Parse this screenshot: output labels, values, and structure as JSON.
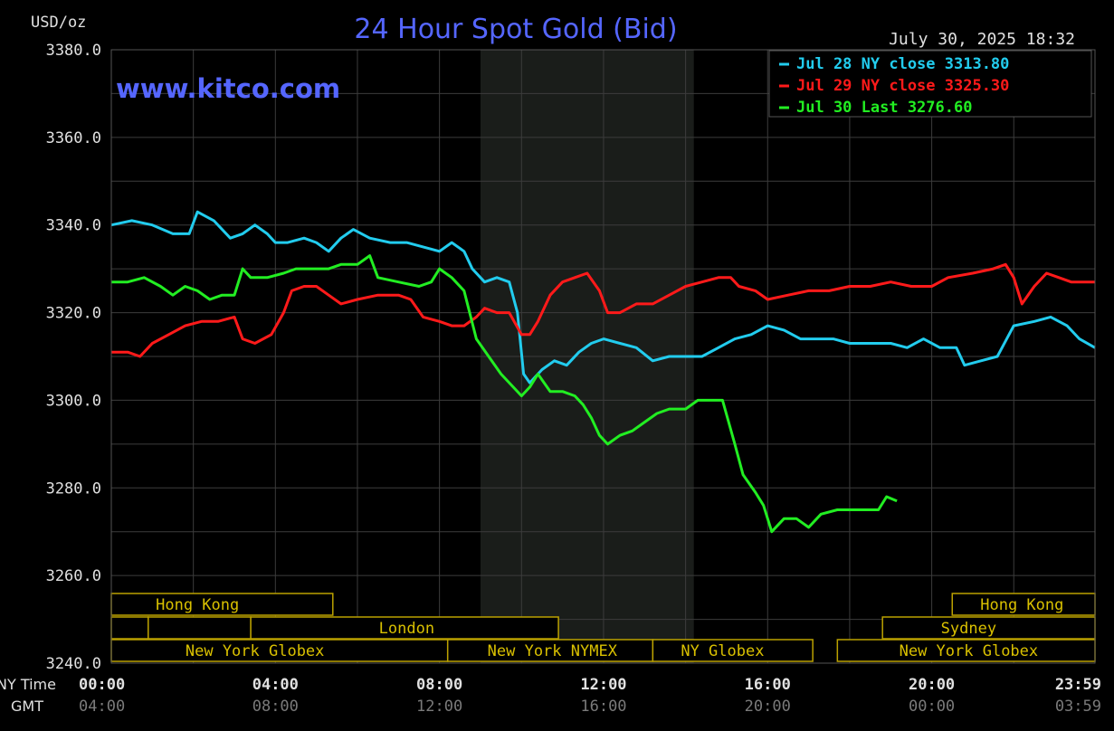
{
  "chart_data": {
    "type": "line",
    "title": "24 Hour Spot Gold (Bid)",
    "watermark": "www.kitco.com",
    "timestamp": "July 30, 2025 18:32",
    "ylabel": "USD/oz",
    "ylim": [
      3240,
      3380
    ],
    "y_ticks": [
      "3380.0",
      "3360.0",
      "3340.0",
      "3320.0",
      "3300.0",
      "3280.0",
      "3260.0",
      "3240.0"
    ],
    "x_ticks_ny": [
      "00:00",
      "04:00",
      "08:00",
      "12:00",
      "16:00",
      "20:00",
      "23:59"
    ],
    "x_ticks_gmt": [
      "04:00",
      "08:00",
      "12:00",
      "16:00",
      "20:00",
      "00:00",
      "03:59"
    ],
    "row_label_ny": "NY Time",
    "row_label_gmt": "GMT",
    "grid": true,
    "legend_position": "top-right",
    "shaded_period": [
      9,
      14.2
    ],
    "series": [
      {
        "name": "Jul 28 NY close 3313.80",
        "color": "#22ccee",
        "points": [
          [
            0,
            3340
          ],
          [
            0.5,
            3341
          ],
          [
            1,
            3340
          ],
          [
            1.5,
            3338
          ],
          [
            1.9,
            3338
          ],
          [
            2.1,
            3343
          ],
          [
            2.5,
            3341
          ],
          [
            2.9,
            3337
          ],
          [
            3.2,
            3338
          ],
          [
            3.5,
            3340
          ],
          [
            3.8,
            3338
          ],
          [
            4,
            3336
          ],
          [
            4.3,
            3336
          ],
          [
            4.7,
            3337
          ],
          [
            5,
            3336
          ],
          [
            5.3,
            3334
          ],
          [
            5.6,
            3337
          ],
          [
            5.9,
            3339
          ],
          [
            6.3,
            3337
          ],
          [
            6.8,
            3336
          ],
          [
            7.2,
            3336
          ],
          [
            7.6,
            3335
          ],
          [
            8,
            3334
          ],
          [
            8.3,
            3336
          ],
          [
            8.6,
            3334
          ],
          [
            8.8,
            3330
          ],
          [
            9.1,
            3327
          ],
          [
            9.4,
            3328
          ],
          [
            9.7,
            3327
          ],
          [
            9.9,
            3320
          ],
          [
            10.05,
            3306
          ],
          [
            10.2,
            3304
          ],
          [
            10.5,
            3307
          ],
          [
            10.8,
            3309
          ],
          [
            11.1,
            3308
          ],
          [
            11.4,
            3311
          ],
          [
            11.7,
            3313
          ],
          [
            12,
            3314
          ],
          [
            12.4,
            3313
          ],
          [
            12.8,
            3312
          ],
          [
            13.2,
            3309
          ],
          [
            13.6,
            3310
          ],
          [
            14,
            3310
          ],
          [
            14.4,
            3310
          ],
          [
            14.8,
            3312
          ],
          [
            15.2,
            3314
          ],
          [
            15.6,
            3315
          ],
          [
            16,
            3317
          ],
          [
            16.4,
            3316
          ],
          [
            16.8,
            3314
          ],
          [
            17.2,
            3314
          ],
          [
            17.6,
            3314
          ],
          [
            18,
            3313
          ],
          [
            18.5,
            3313
          ],
          [
            19,
            3313
          ],
          [
            19.4,
            3312
          ],
          [
            19.8,
            3314
          ],
          [
            20.2,
            3312
          ],
          [
            20.6,
            3312
          ],
          [
            20.8,
            3308
          ],
          [
            21.2,
            3309
          ],
          [
            21.6,
            3310
          ],
          [
            22,
            3317
          ],
          [
            22.5,
            3318
          ],
          [
            22.9,
            3319
          ],
          [
            23.3,
            3317
          ],
          [
            23.6,
            3314
          ],
          [
            23.98,
            3312
          ]
        ]
      },
      {
        "name": "Jul 29 NY close 3325.30",
        "color": "#ff1a1a",
        "points": [
          [
            0,
            3311
          ],
          [
            0.4,
            3311
          ],
          [
            0.7,
            3310
          ],
          [
            1,
            3313
          ],
          [
            1.4,
            3315
          ],
          [
            1.8,
            3317
          ],
          [
            2.2,
            3318
          ],
          [
            2.6,
            3318
          ],
          [
            3,
            3319
          ],
          [
            3.2,
            3314
          ],
          [
            3.5,
            3313
          ],
          [
            3.9,
            3315
          ],
          [
            4.2,
            3320
          ],
          [
            4.4,
            3325
          ],
          [
            4.7,
            3326
          ],
          [
            5,
            3326
          ],
          [
            5.3,
            3324
          ],
          [
            5.6,
            3322
          ],
          [
            6,
            3323
          ],
          [
            6.5,
            3324
          ],
          [
            7,
            3324
          ],
          [
            7.3,
            3323
          ],
          [
            7.6,
            3319
          ],
          [
            8,
            3318
          ],
          [
            8.3,
            3317
          ],
          [
            8.6,
            3317
          ],
          [
            8.9,
            3319
          ],
          [
            9.1,
            3321
          ],
          [
            9.4,
            3320
          ],
          [
            9.7,
            3320
          ],
          [
            10,
            3315
          ],
          [
            10.2,
            3315
          ],
          [
            10.4,
            3318
          ],
          [
            10.7,
            3324
          ],
          [
            11,
            3327
          ],
          [
            11.3,
            3328
          ],
          [
            11.6,
            3329
          ],
          [
            11.9,
            3325
          ],
          [
            12.1,
            3320
          ],
          [
            12.4,
            3320
          ],
          [
            12.8,
            3322
          ],
          [
            13.2,
            3322
          ],
          [
            13.6,
            3324
          ],
          [
            14,
            3326
          ],
          [
            14.4,
            3327
          ],
          [
            14.8,
            3328
          ],
          [
            15.1,
            3328
          ],
          [
            15.3,
            3326
          ],
          [
            15.7,
            3325
          ],
          [
            16,
            3323
          ],
          [
            16.5,
            3324
          ],
          [
            17,
            3325
          ],
          [
            17.5,
            3325
          ],
          [
            18,
            3326
          ],
          [
            18.5,
            3326
          ],
          [
            19,
            3327
          ],
          [
            19.5,
            3326
          ],
          [
            20,
            3326
          ],
          [
            20.4,
            3328
          ],
          [
            21,
            3329
          ],
          [
            21.5,
            3330
          ],
          [
            21.8,
            3331
          ],
          [
            22,
            3328
          ],
          [
            22.2,
            3322
          ],
          [
            22.5,
            3326
          ],
          [
            22.8,
            3329
          ],
          [
            23.1,
            3328
          ],
          [
            23.4,
            3327
          ],
          [
            23.7,
            3327
          ],
          [
            23.98,
            3327
          ]
        ]
      },
      {
        "name": "Jul 30 Last 3276.60",
        "color": "#22ee22",
        "points": [
          [
            0,
            3327
          ],
          [
            0.4,
            3327
          ],
          [
            0.8,
            3328
          ],
          [
            1.2,
            3326
          ],
          [
            1.5,
            3324
          ],
          [
            1.8,
            3326
          ],
          [
            2.1,
            3325
          ],
          [
            2.4,
            3323
          ],
          [
            2.7,
            3324
          ],
          [
            3,
            3324
          ],
          [
            3.2,
            3330
          ],
          [
            3.4,
            3328
          ],
          [
            3.8,
            3328
          ],
          [
            4.2,
            3329
          ],
          [
            4.5,
            3330
          ],
          [
            4.9,
            3330
          ],
          [
            5.3,
            3330
          ],
          [
            5.6,
            3331
          ],
          [
            6,
            3331
          ],
          [
            6.3,
            3333
          ],
          [
            6.5,
            3328
          ],
          [
            7,
            3327
          ],
          [
            7.5,
            3326
          ],
          [
            7.8,
            3327
          ],
          [
            8,
            3330
          ],
          [
            8.3,
            3328
          ],
          [
            8.6,
            3325
          ],
          [
            8.9,
            3314
          ],
          [
            9.2,
            3310
          ],
          [
            9.5,
            3306
          ],
          [
            9.8,
            3303
          ],
          [
            10,
            3301
          ],
          [
            10.2,
            3303
          ],
          [
            10.4,
            3306
          ],
          [
            10.7,
            3302
          ],
          [
            11,
            3302
          ],
          [
            11.3,
            3301
          ],
          [
            11.5,
            3299
          ],
          [
            11.7,
            3296
          ],
          [
            11.9,
            3292
          ],
          [
            12.1,
            3290
          ],
          [
            12.4,
            3292
          ],
          [
            12.7,
            3293
          ],
          [
            13,
            3295
          ],
          [
            13.3,
            3297
          ],
          [
            13.6,
            3298
          ],
          [
            14,
            3298
          ],
          [
            14.3,
            3300
          ],
          [
            14.6,
            3300
          ],
          [
            14.9,
            3300
          ],
          [
            15.2,
            3290
          ],
          [
            15.4,
            3283
          ],
          [
            15.7,
            3279
          ],
          [
            15.9,
            3276
          ],
          [
            16.1,
            3270
          ],
          [
            16.4,
            3273
          ],
          [
            16.7,
            3273
          ],
          [
            17,
            3271
          ],
          [
            17.3,
            3274
          ],
          [
            17.7,
            3275
          ],
          [
            18,
            3275
          ],
          [
            18.4,
            3275
          ],
          [
            18.7,
            3275
          ],
          [
            18.9,
            3278
          ],
          [
            19.15,
            3277
          ]
        ]
      }
    ],
    "sessions": [
      {
        "label": "Hong Kong",
        "row": 0,
        "start": 0,
        "end": 5.4,
        "label_center": 2.1
      },
      {
        "label": "Hong Kong",
        "row": 0,
        "start": 20.5,
        "end": 23.98,
        "label_center": 22.2
      },
      {
        "label": "",
        "row": 1,
        "start": 0,
        "end": 0.9,
        "label_center": 0.45
      },
      {
        "label": "",
        "row": 1,
        "start": 0.9,
        "end": 3.4,
        "label_center": 2.1
      },
      {
        "label": "London",
        "row": 1,
        "start": 3.4,
        "end": 10.9,
        "label_center": 7.2
      },
      {
        "label": "Sydney",
        "row": 1,
        "start": 18.8,
        "end": 23.98,
        "label_center": 20.9
      },
      {
        "label": "New York Globex",
        "row": 2,
        "start": 0,
        "end": 8.2,
        "label_center": 3.5
      },
      {
        "label": "New York NYMEX",
        "row": 2,
        "start": 8.2,
        "end": 13.2,
        "label_center": 10.75
      },
      {
        "label": "NY Globex",
        "row": 2,
        "start": 13.2,
        "end": 17.1,
        "label_center": 14.9
      },
      {
        "label": "New York Globex",
        "row": 2,
        "start": 17.7,
        "end": 23.98,
        "label_center": 20.9
      }
    ]
  }
}
